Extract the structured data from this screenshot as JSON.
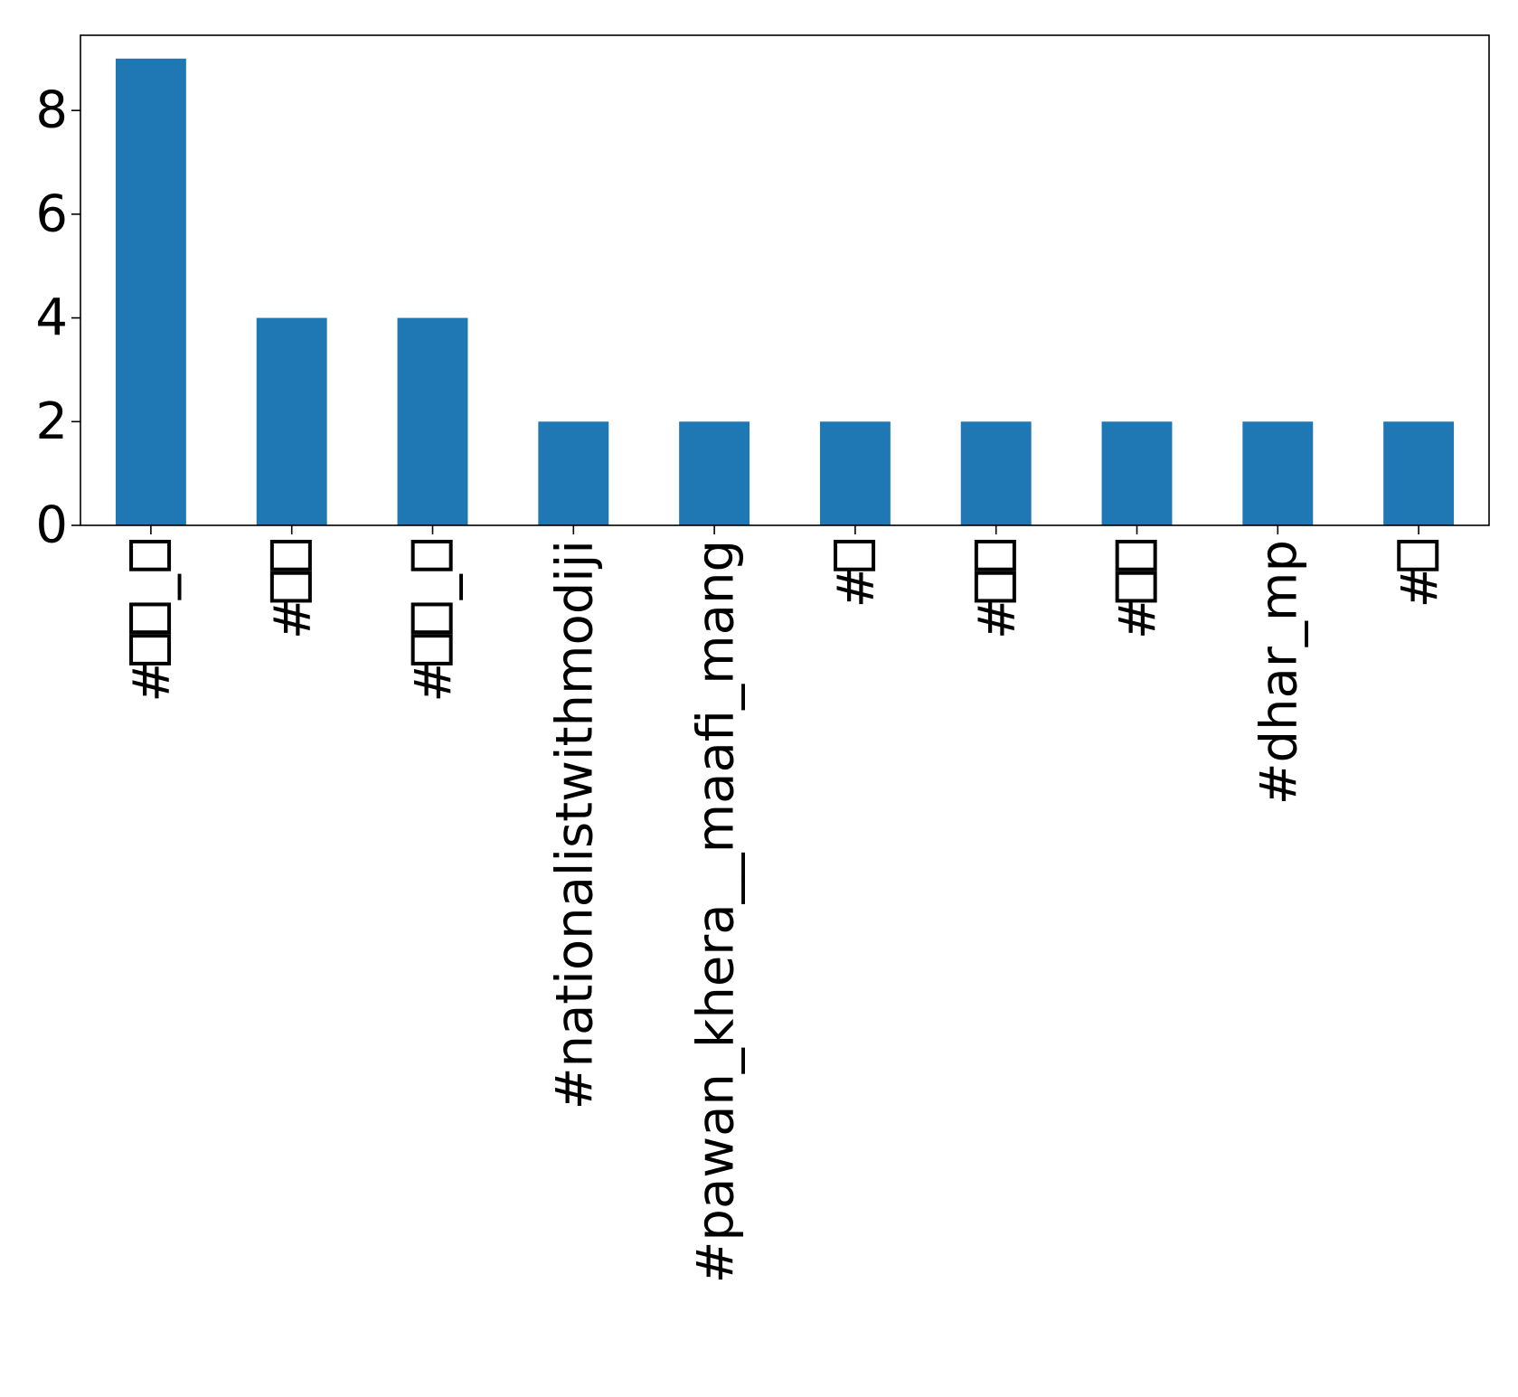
{
  "chart_data": {
    "type": "bar",
    "categories": [
      "#▯▯_▯",
      "#▯▯",
      "#▯▯_▯",
      "#nationalistwithmodiji",
      "#pawan_khera__maafi_mang",
      "#▯",
      "#▯▯",
      "#▯▯",
      "#dhar_mp",
      "#▯"
    ],
    "values": [
      9,
      4,
      4,
      2,
      2,
      2,
      2,
      2,
      2,
      2
    ],
    "y_ticks": [
      0,
      2,
      4,
      6,
      8
    ],
    "ylim": [
      0,
      9.45
    ],
    "title": "",
    "xlabel": "",
    "ylabel": "",
    "bar_color": "#1f77b4",
    "grid": false,
    "legend": "none"
  }
}
